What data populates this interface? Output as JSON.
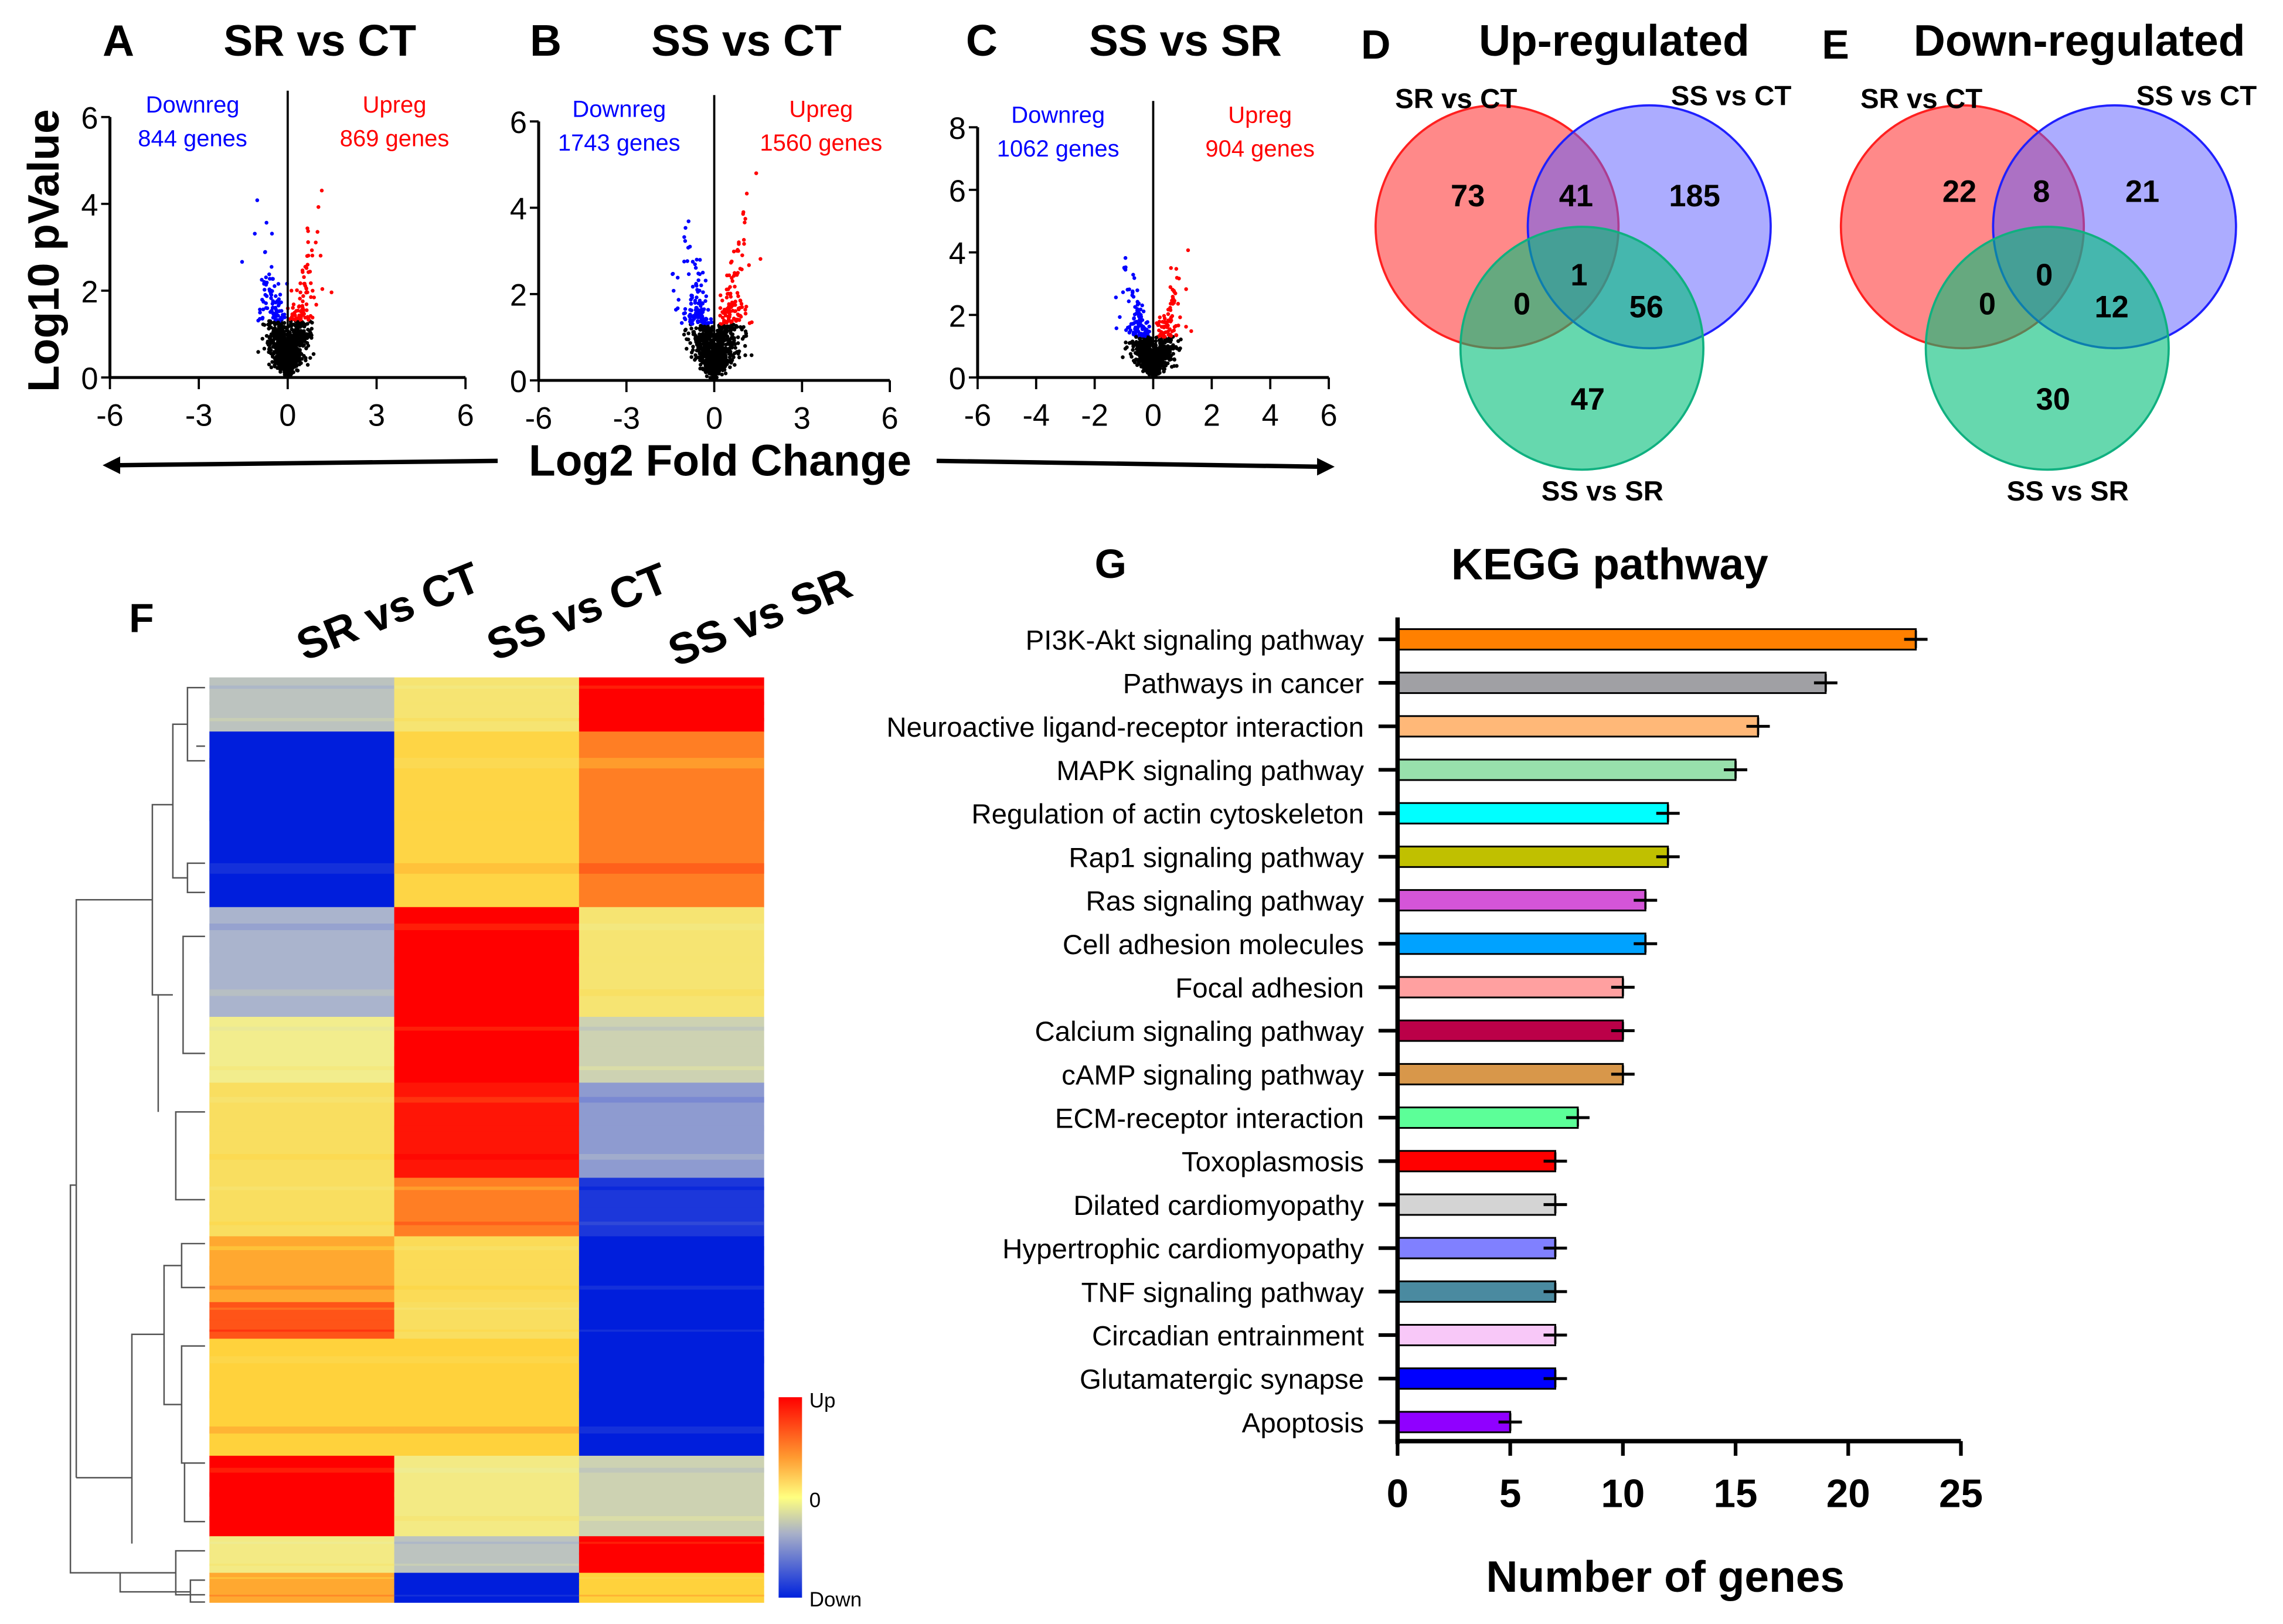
{
  "volcano": {
    "ylabel": "Log10 pValue",
    "xlabel": "Log2 Fold Change",
    "panels": [
      {
        "letter": "A",
        "title": "SR vs CT",
        "down_label": "Downreg",
        "down_count": "844 genes",
        "up_label": "Upreg",
        "up_count": "869 genes",
        "xticks": [
          "-6",
          "-3",
          "0",
          "3",
          "6"
        ],
        "yticks": [
          "0",
          "2",
          "4",
          "6"
        ],
        "xlim": [
          -6,
          6
        ],
        "ylim": [
          0,
          6
        ]
      },
      {
        "letter": "B",
        "title": "SS vs CT",
        "down_label": "Downreg",
        "down_count": "1743 genes",
        "up_label": "Upreg",
        "up_count": "1560 genes",
        "xticks": [
          "-6",
          "-3",
          "0",
          "3",
          "6"
        ],
        "yticks": [
          "0",
          "2",
          "4",
          "6"
        ],
        "xlim": [
          -6,
          6
        ],
        "ylim": [
          0,
          6
        ]
      },
      {
        "letter": "C",
        "title": "SS vs SR",
        "down_label": "Downreg",
        "down_count": "1062 genes",
        "up_label": "Upreg",
        "up_count": "904 genes",
        "xticks": [
          "-6",
          "-4",
          "-2",
          "0",
          "2",
          "4",
          "6"
        ],
        "yticks": [
          "0",
          "2",
          "4",
          "6",
          "8"
        ],
        "xlim": [
          -6,
          6
        ],
        "ylim": [
          0,
          8
        ]
      }
    ]
  },
  "venn": [
    {
      "letter": "D",
      "title": "Up-regulated",
      "sets": [
        "SR vs CT",
        "SS vs CT",
        "SS vs SR"
      ],
      "regions": {
        "a": "73",
        "ab": "41",
        "b": "185",
        "abc": "1",
        "ac": "0",
        "bc": "56",
        "c": "47"
      }
    },
    {
      "letter": "E",
      "title": "Down-regulated",
      "sets": [
        "SR vs CT",
        "SS vs CT",
        "SS vs SR"
      ],
      "regions": {
        "a": "22",
        "ab": "8",
        "b": "21",
        "abc": "0",
        "ac": "0",
        "bc": "12",
        "c": "30"
      }
    }
  ],
  "heatmap": {
    "letter": "F",
    "columns": [
      "SR vs CT",
      "SS vs CT",
      "SS vs SR"
    ],
    "legend": {
      "up": "Up",
      "zero": "0",
      "down": "Down"
    },
    "blocks": [
      {
        "weight": 37,
        "values": [
          -0.3,
          0.2,
          1
        ]
      },
      {
        "weight": 120,
        "values": [
          -1,
          0.45,
          0.7
        ]
      },
      {
        "weight": 75,
        "values": [
          -0.4,
          1,
          0.2
        ]
      },
      {
        "weight": 45,
        "values": [
          0.05,
          1,
          -0.2
        ]
      },
      {
        "weight": 65,
        "values": [
          0.3,
          0.95,
          -0.5
        ]
      },
      {
        "weight": 40,
        "values": [
          0.3,
          0.7,
          -0.9
        ]
      },
      {
        "weight": 45,
        "values": [
          0.6,
          0.35,
          -1
        ]
      },
      {
        "weight": 25,
        "values": [
          0.8,
          0.3,
          -1
        ]
      },
      {
        "weight": 80,
        "values": [
          0.5,
          0.5,
          -1
        ]
      },
      {
        "weight": 55,
        "values": [
          1,
          0.1,
          -0.2
        ]
      },
      {
        "weight": 25,
        "values": [
          0.1,
          -0.3,
          1
        ]
      },
      {
        "weight": 20,
        "values": [
          0.6,
          -1,
          0.5
        ]
      }
    ]
  },
  "chart_data": {
    "type": "bar",
    "letter": "G",
    "title": "KEGG pathway",
    "xlabel": "Number of genes",
    "xlim": [
      0,
      25
    ],
    "xticks": [
      "0",
      "5",
      "10",
      "15",
      "20",
      "25"
    ],
    "categories": [
      "PI3K-Akt signaling pathway",
      "Pathways in cancer",
      "Neuroactive ligand-receptor interaction",
      "MAPK signaling pathway",
      "Regulation of actin cytoskeleton",
      "Rap1 signaling pathway",
      "Ras signaling pathway",
      "Cell adhesion molecules",
      "Focal adhesion",
      "Calcium signaling pathway",
      "cAMP signaling pathway",
      "ECM-receptor interaction",
      "Toxoplasmosis",
      "Dilated cardiomyopathy",
      "Hypertrophic cardiomyopathy",
      "TNF signaling pathway",
      "Circadian entrainment",
      "Glutamatergic synapse",
      "Apoptosis"
    ],
    "values": [
      23,
      19,
      16,
      15,
      12,
      12,
      11,
      11,
      10,
      10,
      10,
      8,
      7,
      7,
      7,
      7,
      7,
      7,
      5
    ],
    "colors": [
      "#ff8000",
      "#a0a0a4",
      "#ffb878",
      "#98e0ac",
      "#00ffff",
      "#c0c000",
      "#d455d8",
      "#00a2ff",
      "#ffa0a0",
      "#bb0048",
      "#d8974a",
      "#5cff98",
      "#ff0000",
      "#d4d4d4",
      "#8080ff",
      "#4a8aa0",
      "#f8c8f8",
      "#0000ff",
      "#9000ff"
    ]
  }
}
